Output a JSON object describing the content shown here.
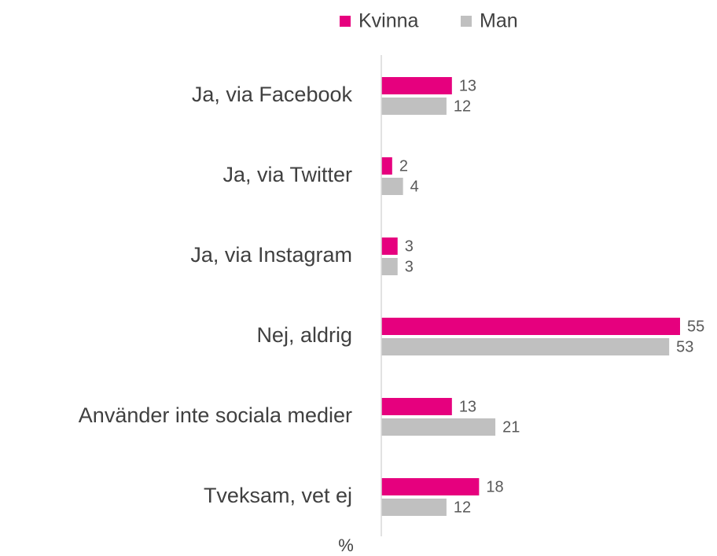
{
  "chart_data": {
    "type": "hbar",
    "categories": [
      "Ja, via Facebook",
      "Ja, via Twitter",
      "Ja, via Instagram",
      "Nej, aldrig",
      "Använder inte sociala medier",
      "Tveksam, vet ej"
    ],
    "series": [
      {
        "name": "Kvinna",
        "color": "#e6007e",
        "values": [
          13,
          2,
          3,
          55,
          13,
          18
        ]
      },
      {
        "name": "Man",
        "color": "#c0c0c0",
        "values": [
          12,
          4,
          3,
          53,
          21,
          12
        ]
      }
    ],
    "xlim": [
      0,
      55
    ],
    "xlabel": "%",
    "legend": "top"
  }
}
